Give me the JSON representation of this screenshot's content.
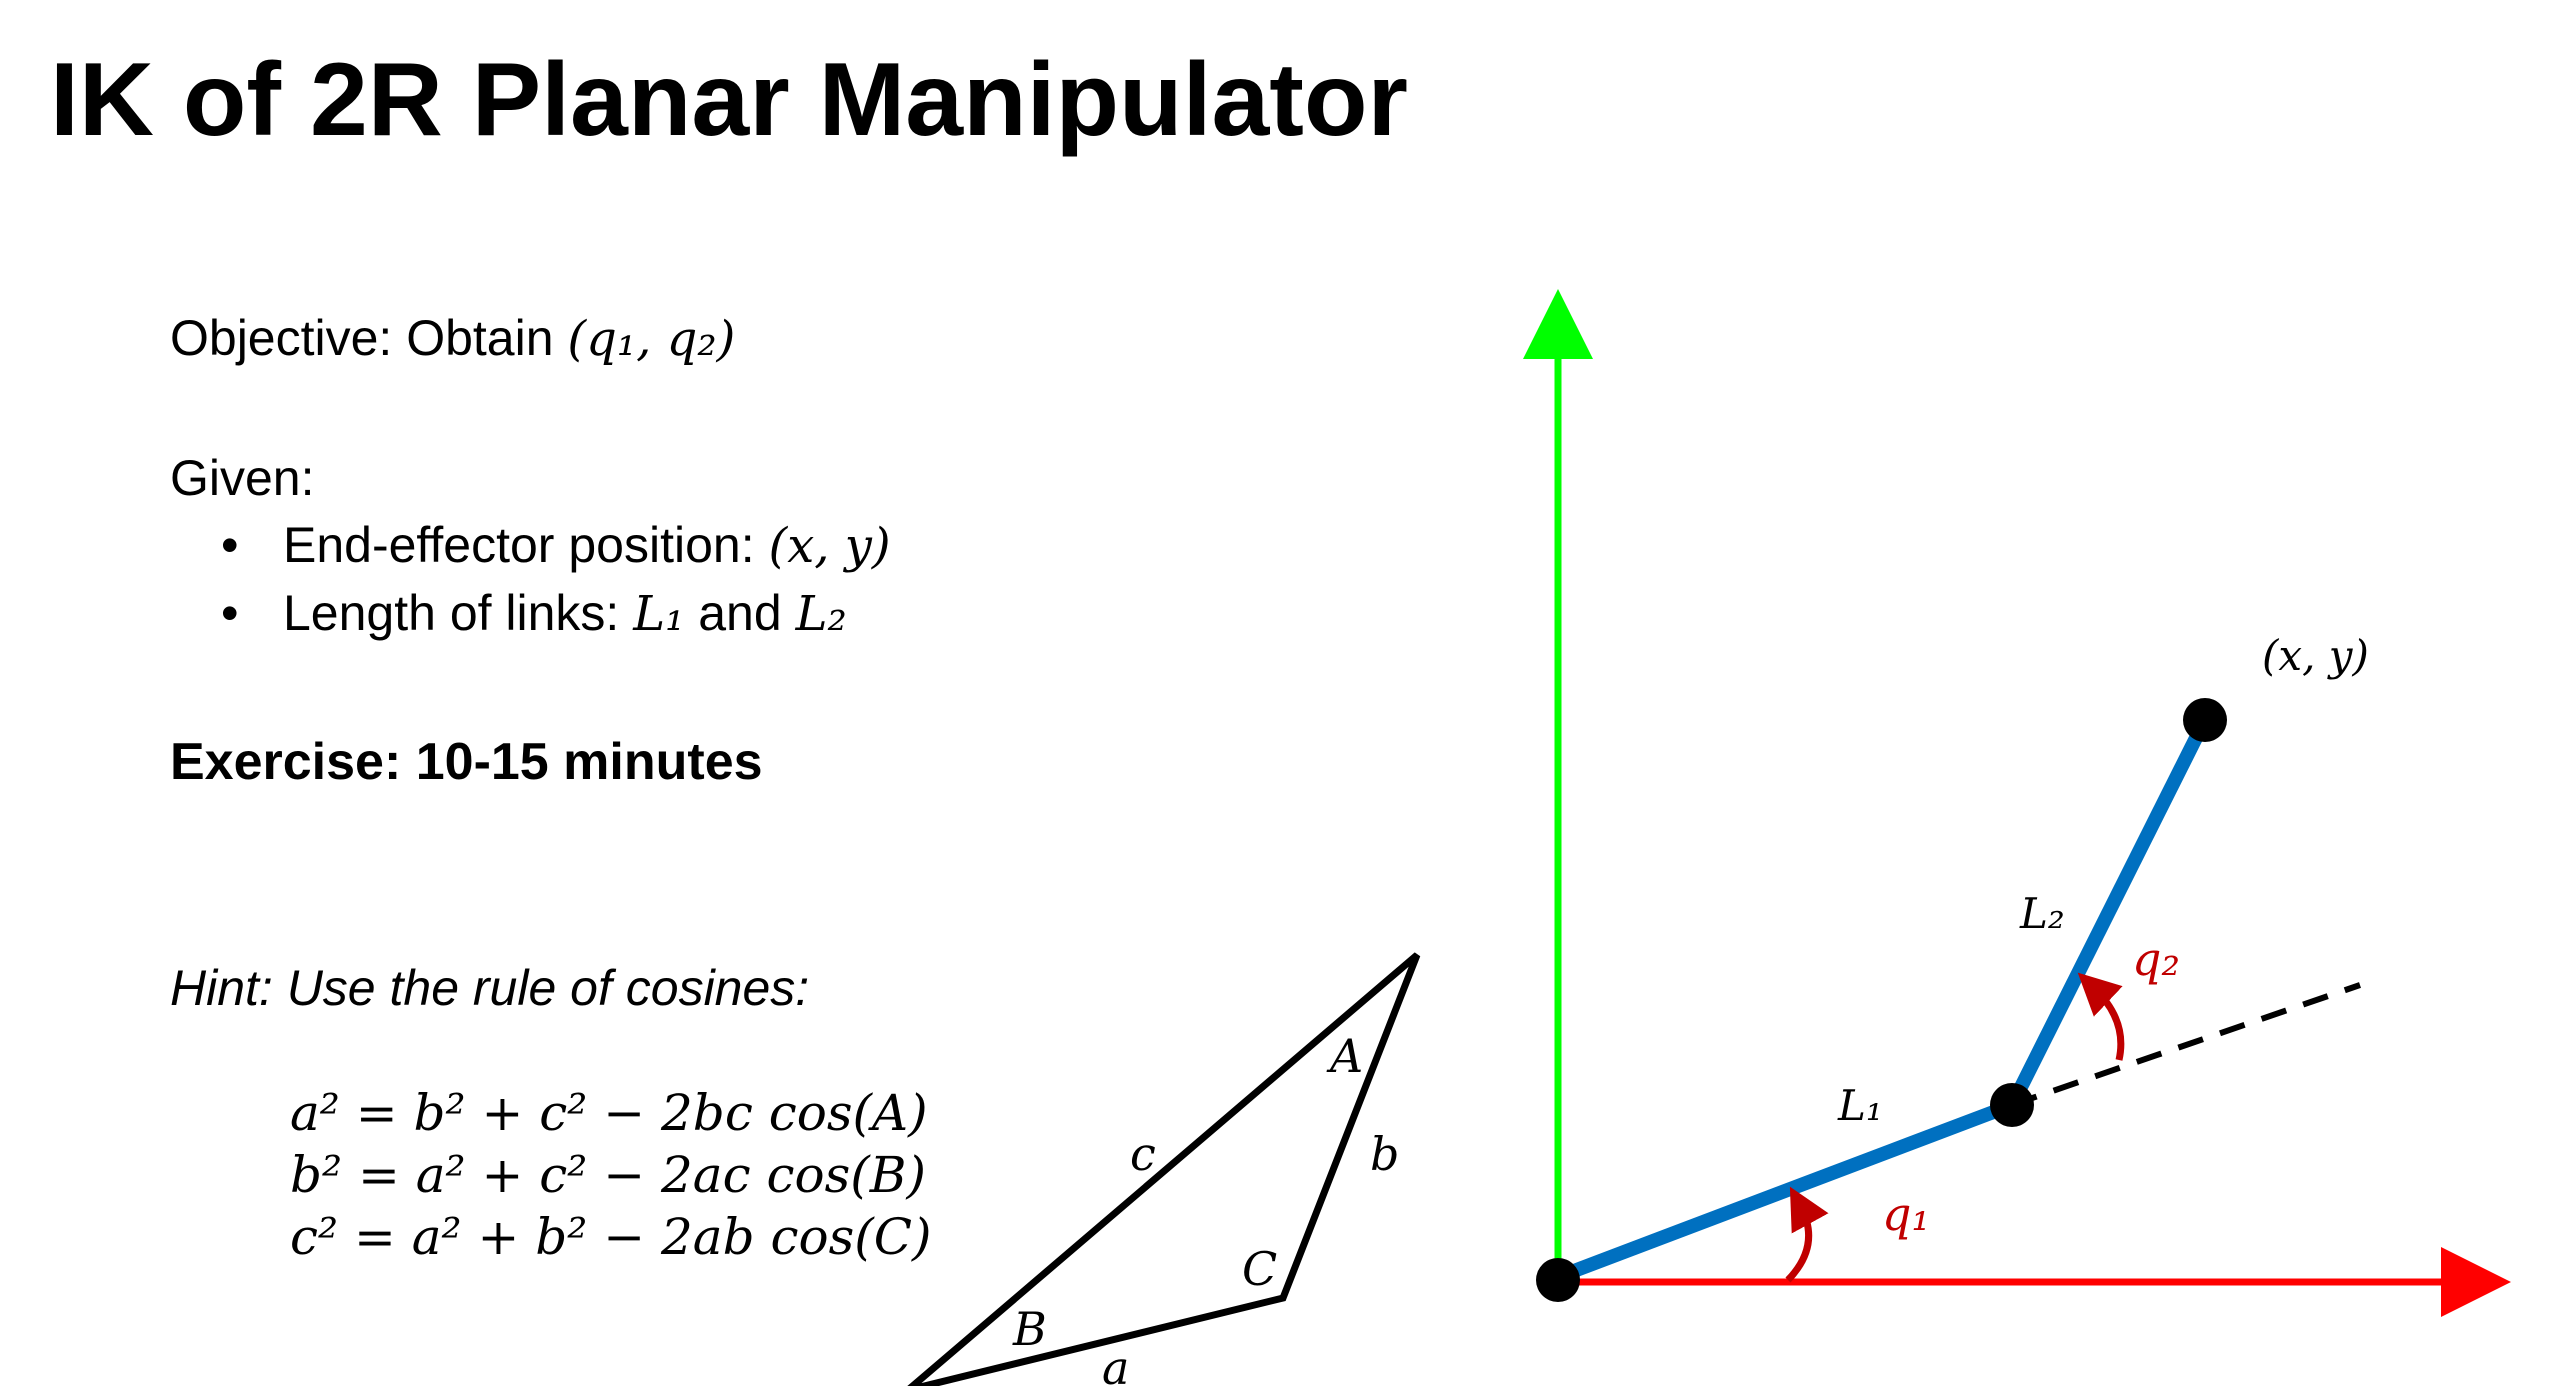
{
  "slide": {
    "title": "IK of 2R Planar Manipulator",
    "objective_label": "Objective: Obtain ",
    "objective_math": "(q₁, q₂)",
    "given_label": "Given:",
    "bullets": [
      {
        "text": "End-effector position: ",
        "math": "(x, y)"
      },
      {
        "text": "Length of links: ",
        "math1": "L₁",
        "mid": " and ",
        "math2": "L₂"
      }
    ],
    "exercise": "Exercise: 10-15 minutes",
    "hint": "Hint: Use the rule of cosines:",
    "equations": [
      "a² = b² + c² − 2bc cos(A)",
      "b² = a² + c² − 2ac cos(B)",
      "c² = a² + b² − 2ab cos(C)"
    ]
  },
  "triangle": {
    "side_labels": {
      "a": "a",
      "b": "b",
      "c": "c"
    },
    "angle_labels": {
      "A": "A",
      "B": "B",
      "C": "C"
    },
    "stroke_color": "#000000"
  },
  "manipulator": {
    "end_effector_label": "(x, y)",
    "link1_label": "L₁",
    "link2_label": "L₂",
    "joint1_angle_label": "q₁",
    "joint2_angle_label": "q₂",
    "colors": {
      "x_axis": "#ff0000",
      "y_axis": "#00ff00",
      "links": "#0070c0",
      "joints": "#000000",
      "angle_arrows": "#c00000",
      "angle_labels": "#c00000",
      "extension_line": "#000000"
    }
  }
}
